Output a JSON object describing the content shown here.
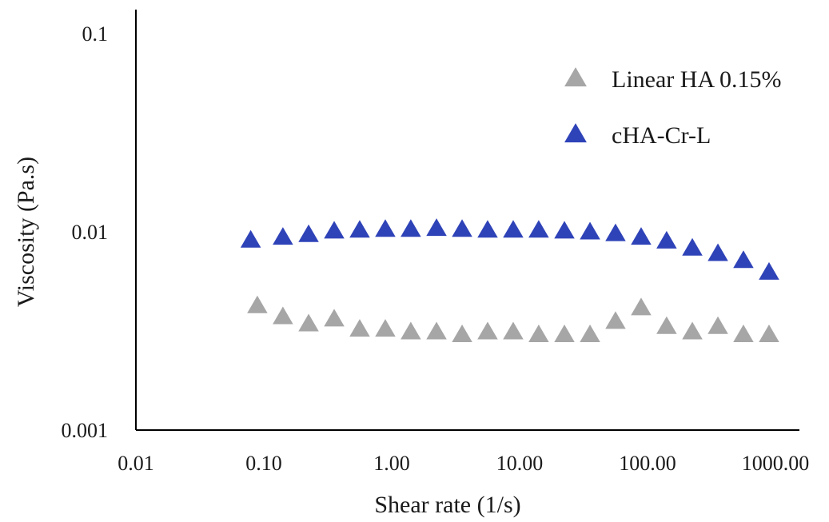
{
  "chart_data": {
    "type": "scatter",
    "title": "",
    "xlabel": "Shear rate (1/s)",
    "ylabel": "Viscosity (Pa.s)",
    "x_scale": "log",
    "y_scale": "log",
    "xlim": [
      0.01,
      1000
    ],
    "ylim": [
      0.001,
      0.1
    ],
    "x_ticks": [
      {
        "value": 0.01,
        "label": "0.01"
      },
      {
        "value": 0.1,
        "label": "0.10"
      },
      {
        "value": 1,
        "label": "1.00"
      },
      {
        "value": 10,
        "label": "10.00"
      },
      {
        "value": 100,
        "label": "100.00"
      },
      {
        "value": 1000,
        "label": "1000.00"
      }
    ],
    "y_ticks": [
      {
        "value": 0.001,
        "label": "0.001"
      },
      {
        "value": 0.01,
        "label": "0.01"
      },
      {
        "value": 0.1,
        "label": "0.1"
      }
    ],
    "grid": false,
    "legend_position": "top-right",
    "series": [
      {
        "name": "Linear HA 0.15%",
        "color": "#a6a6a6",
        "marker": "triangle",
        "x": [
          0.089,
          0.141,
          0.224,
          0.355,
          0.562,
          0.891,
          1.41,
          2.24,
          3.55,
          5.62,
          8.91,
          14.1,
          22.4,
          35.5,
          56.2,
          89.1,
          141,
          224,
          355,
          562,
          891
        ],
        "y": [
          0.0042,
          0.0037,
          0.0034,
          0.0036,
          0.0032,
          0.0032,
          0.0031,
          0.0031,
          0.003,
          0.0031,
          0.0031,
          0.003,
          0.003,
          0.003,
          0.0035,
          0.0041,
          0.0033,
          0.0031,
          0.0033,
          0.003,
          0.003
        ]
      },
      {
        "name": "cHA-Cr-L",
        "color": "#2f43b8",
        "marker": "triangle",
        "x": [
          0.079,
          0.141,
          0.224,
          0.355,
          0.562,
          0.891,
          1.41,
          2.24,
          3.55,
          5.62,
          8.91,
          14.1,
          22.4,
          35.5,
          56.2,
          89.1,
          141,
          224,
          355,
          562,
          891
        ],
        "y": [
          0.009,
          0.0093,
          0.0096,
          0.01,
          0.0101,
          0.0102,
          0.0102,
          0.0103,
          0.0102,
          0.0101,
          0.0101,
          0.0101,
          0.01,
          0.0099,
          0.0097,
          0.0093,
          0.0089,
          0.0082,
          0.0077,
          0.0071,
          0.0062
        ]
      }
    ]
  }
}
